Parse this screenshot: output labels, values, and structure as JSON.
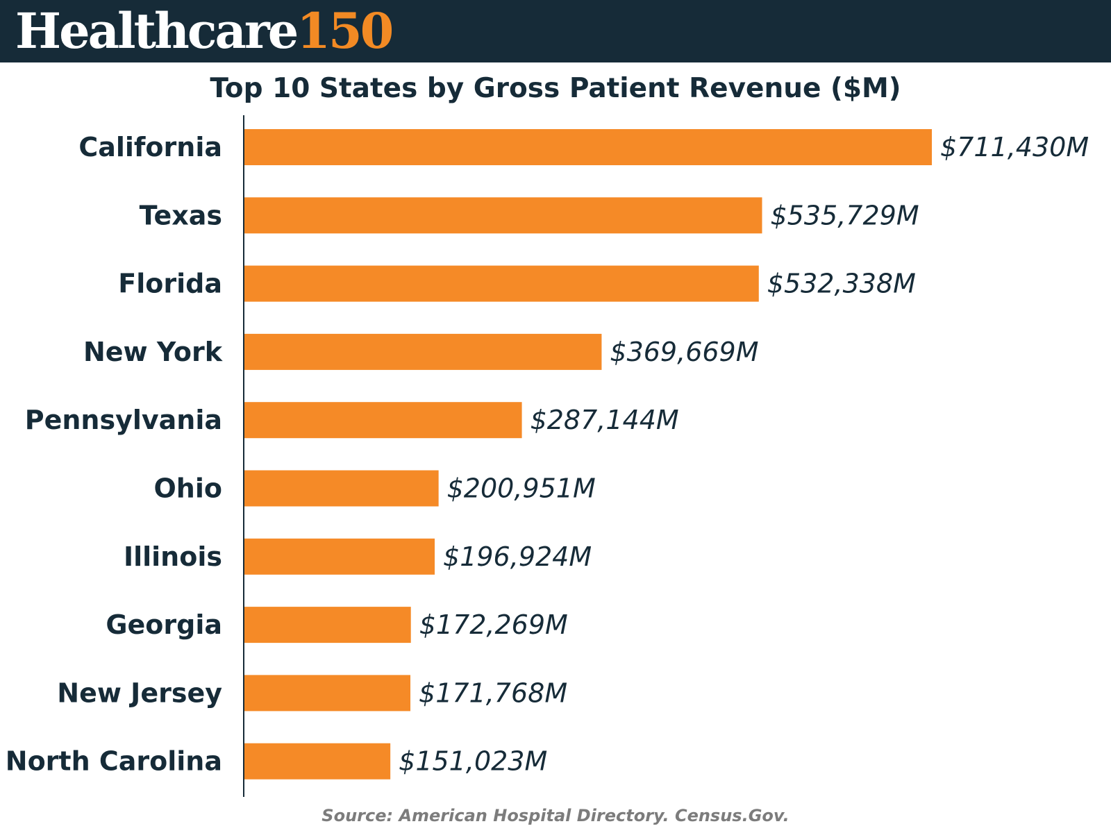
{
  "header": {
    "logo_main": "Healthcare",
    "logo_accent": "150"
  },
  "colors": {
    "header_bg": "#162b38",
    "bar": "#f58a27",
    "text": "#162b38",
    "accent": "#f28a24"
  },
  "source_note": "Source: American Hospital Directory. Census.Gov.",
  "chart_data": {
    "type": "bar",
    "orientation": "horizontal",
    "title": "Top 10 States by Gross Patient Revenue ($M)",
    "xlabel": "",
    "ylabel": "",
    "grid": false,
    "legend": "none",
    "xlim": [
      0,
      711430
    ],
    "categories": [
      "California",
      "Texas",
      "Florida",
      "New York",
      "Pennsylvania",
      "Ohio",
      "Illinois",
      "Georgia",
      "New Jersey",
      "North Carolina"
    ],
    "values": [
      711430,
      535729,
      532338,
      369669,
      287144,
      200951,
      196924,
      172269,
      171768,
      151023
    ],
    "data_labels": [
      "$711,430M",
      "$535,729M",
      "$532,338M",
      "$369,669M",
      "$287,144M",
      "$200,951M",
      "$196,924M",
      "$172,269M",
      "$171,768M",
      "$151,023M"
    ]
  }
}
